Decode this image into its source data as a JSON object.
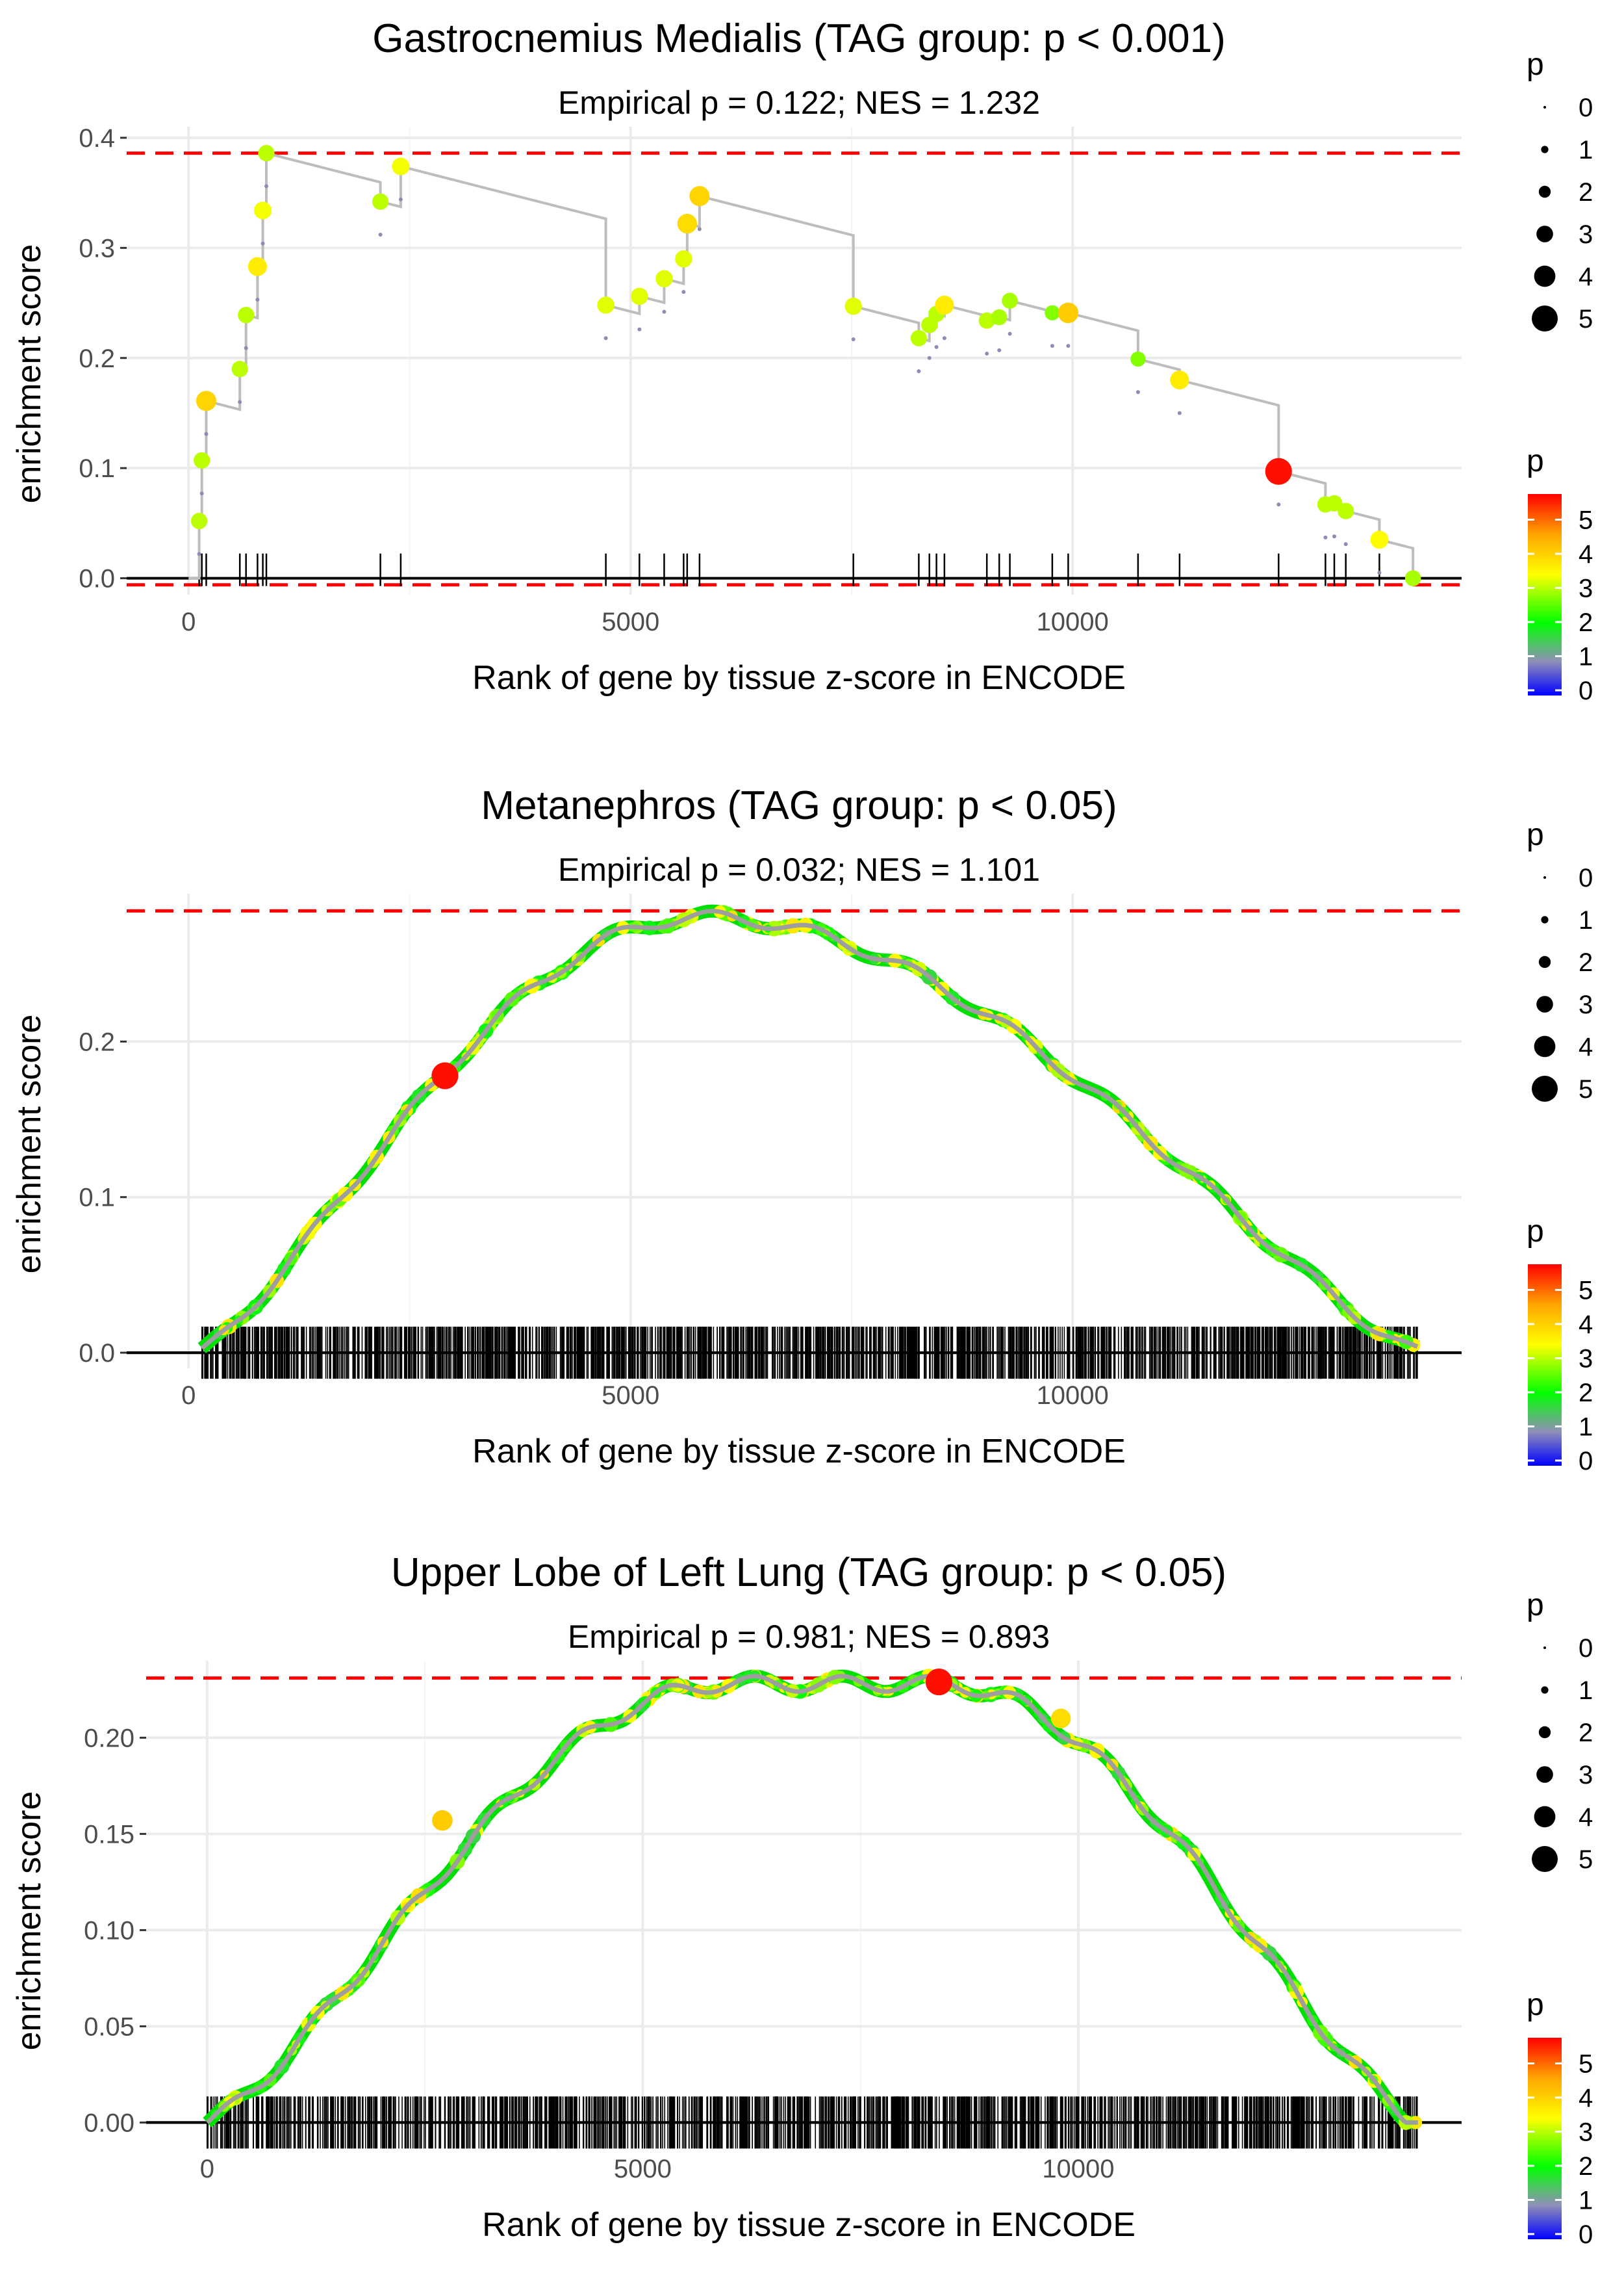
{
  "chart_data": [
    {
      "type": "line",
      "title": "Gastrocnemius Medialis (TAG group: p < 0.001)",
      "subtitle": "Empirical p = 0.122; NES = 1.232",
      "xlabel": "Rank of gene by tissue z-score in ENCODE",
      "ylabel": "enrichment score",
      "xlim": [
        -700,
        14400
      ],
      "ylim": [
        -0.015,
        0.41
      ],
      "x_ticks": [
        0,
        5000,
        10000
      ],
      "x_tick_labels": [
        "0",
        "5000",
        "10000"
      ],
      "y_ticks": [
        0,
        0.1,
        0.2,
        0.3,
        0.4
      ],
      "y_tick_labels": [
        "0.0",
        "0.1",
        "0.2",
        "0.3",
        "0.4"
      ],
      "threshold_upper": 0.386,
      "threshold_lower": -0.006,
      "line_color": "#bdbdbd",
      "hits": [
        {
          "x": 120,
          "y": 0.052,
          "p": 3.0
        },
        {
          "x": 150,
          "y": 0.107,
          "p": 3.0
        },
        {
          "x": 200,
          "y": 0.161,
          "p": 3.9
        },
        {
          "x": 580,
          "y": 0.19,
          "p": 3.0
        },
        {
          "x": 650,
          "y": 0.239,
          "p": 3.0
        },
        {
          "x": 780,
          "y": 0.283,
          "p": 3.6
        },
        {
          "x": 840,
          "y": 0.334,
          "p": 3.3
        },
        {
          "x": 880,
          "y": 0.386,
          "p": 3.0
        },
        {
          "x": 2170,
          "y": 0.342,
          "p": 3.0
        },
        {
          "x": 2400,
          "y": 0.374,
          "p": 3.3
        },
        {
          "x": 4720,
          "y": 0.248,
          "p": 3.2
        },
        {
          "x": 5100,
          "y": 0.256,
          "p": 3.2
        },
        {
          "x": 5380,
          "y": 0.272,
          "p": 3.2
        },
        {
          "x": 5600,
          "y": 0.29,
          "p": 3.2
        },
        {
          "x": 5640,
          "y": 0.322,
          "p": 3.8
        },
        {
          "x": 5780,
          "y": 0.347,
          "p": 3.9
        },
        {
          "x": 7520,
          "y": 0.247,
          "p": 3.2
        },
        {
          "x": 8260,
          "y": 0.218,
          "p": 3.0
        },
        {
          "x": 8380,
          "y": 0.23,
          "p": 3.0
        },
        {
          "x": 8460,
          "y": 0.24,
          "p": 3.0
        },
        {
          "x": 8550,
          "y": 0.248,
          "p": 3.6
        },
        {
          "x": 9030,
          "y": 0.234,
          "p": 3.0
        },
        {
          "x": 9170,
          "y": 0.237,
          "p": 2.9
        },
        {
          "x": 9290,
          "y": 0.252,
          "p": 2.9
        },
        {
          "x": 9770,
          "y": 0.241,
          "p": 2.7
        },
        {
          "x": 9950,
          "y": 0.241,
          "p": 4.0
        },
        {
          "x": 10740,
          "y": 0.199,
          "p": 2.7
        },
        {
          "x": 11210,
          "y": 0.18,
          "p": 3.6
        },
        {
          "x": 12330,
          "y": 0.097,
          "p": 5.5
        },
        {
          "x": 12860,
          "y": 0.067,
          "p": 3.0
        },
        {
          "x": 12960,
          "y": 0.068,
          "p": 3.0
        },
        {
          "x": 13090,
          "y": 0.061,
          "p": 3.0
        },
        {
          "x": 13470,
          "y": 0.035,
          "p": 3.4
        },
        {
          "x": 13850,
          "y": 0.0,
          "p": 2.9
        }
      ]
    },
    {
      "type": "line",
      "title": "Metanephros (TAG group: p < 0.05)",
      "subtitle": "Empirical p = 0.032; NES = 1.101",
      "xlabel": "Rank of gene by tissue z-score in ENCODE",
      "ylabel": "enrichment score",
      "xlim": [
        -700,
        14400
      ],
      "ylim": [
        -0.01,
        0.295
      ],
      "x_ticks": [
        0,
        5000,
        10000
      ],
      "x_tick_labels": [
        "0",
        "5000",
        "10000"
      ],
      "y_ticks": [
        0,
        0.1,
        0.2
      ],
      "y_tick_labels": [
        "0.0",
        "0.1",
        "0.2"
      ],
      "threshold_upper": 0.284,
      "curve_peak_x": 5800,
      "curve_peak_y": 0.28,
      "curve_start_x": 150,
      "curve_end_x": 13900,
      "n_hits": 1600,
      "highlight_hits": [
        {
          "x": 2900,
          "y": 0.178,
          "p": 5.5
        }
      ]
    },
    {
      "type": "line",
      "title": "Upper Lobe of Left Lung (TAG group: p < 0.05)",
      "subtitle": "Empirical p = 0.981; NES = 0.893",
      "xlabel": "Rank of gene by tissue z-score in ENCODE",
      "ylabel": "enrichment score",
      "xlim": [
        -700,
        14400
      ],
      "ylim": [
        -0.01,
        0.24
      ],
      "x_ticks": [
        0,
        5000,
        10000
      ],
      "x_tick_labels": [
        "0",
        "5000",
        "10000"
      ],
      "y_ticks": [
        0,
        0.05,
        0.1,
        0.15,
        0.2
      ],
      "y_tick_labels": [
        "0.00",
        "0.05",
        "0.10",
        "0.15",
        "0.20"
      ],
      "threshold_upper": 0.231,
      "curve_plateau": [
        6000,
        8400
      ],
      "curve_peak_y": 0.228,
      "curve_start_x": 0,
      "curve_end_x": 13900,
      "n_hits": 1400,
      "highlight_hits": [
        {
          "x": 2700,
          "y": 0.157,
          "p": 4.0
        },
        {
          "x": 8400,
          "y": 0.229,
          "p": 5.5
        },
        {
          "x": 9800,
          "y": 0.21,
          "p": 3.8
        }
      ]
    }
  ],
  "legends": [
    {
      "size_title": "p",
      "size_labels": [
        "0",
        "1",
        "2",
        "3",
        "4",
        "5"
      ],
      "color_title": "p",
      "color_labels": [
        "0",
        "1",
        "2",
        "3",
        "4",
        "5"
      ]
    },
    {
      "size_title": "p",
      "size_labels": [
        "0",
        "1",
        "2",
        "3",
        "4",
        "5"
      ],
      "color_title": "p",
      "color_labels": [
        "0",
        "1",
        "2",
        "3",
        "4",
        "5"
      ]
    },
    {
      "size_title": "p",
      "size_labels": [
        "0",
        "1",
        "2",
        "3",
        "4",
        "5"
      ],
      "color_title": "p",
      "color_labels": [
        "0",
        "1",
        "2",
        "3",
        "4",
        "5"
      ]
    }
  ],
  "colors": {
    "threshold": "#ff0000",
    "gridline": "#ebebeb",
    "zero_line": "#000000",
    "curve_gray": "#9e9e9e",
    "colorscale": [
      "#0000ff",
      "#8f8fbf",
      "#00ff00",
      "#ffff00",
      "#ffa500",
      "#ff0000"
    ]
  }
}
